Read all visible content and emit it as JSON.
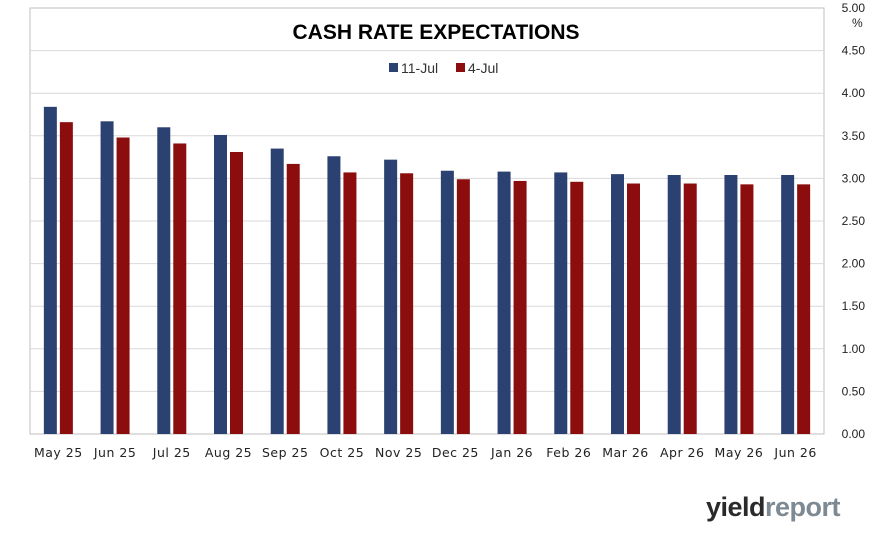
{
  "chart_data": {
    "type": "bar",
    "title": "CASH RATE EXPECTATIONS",
    "y_unit": "%",
    "ylim": [
      0,
      5
    ],
    "y_ticks": [
      "0.00",
      "0.50",
      "1.00",
      "1.50",
      "2.00",
      "2.50",
      "3.00",
      "3.50",
      "4.00",
      "4.50",
      "5.00"
    ],
    "categories": [
      "May 25",
      "Jun 25",
      "Jul 25",
      "Aug 25",
      "Sep 25",
      "Oct 25",
      "Nov 25",
      "Dec 25",
      "Jan 26",
      "Feb 26",
      "Mar 26",
      "Apr 26",
      "May 26",
      "Jun 26"
    ],
    "series": [
      {
        "name": "11-Jul",
        "color": "#2b4172",
        "values": [
          3.84,
          3.67,
          3.6,
          3.51,
          3.35,
          3.26,
          3.22,
          3.09,
          3.08,
          3.07,
          3.05,
          3.04,
          3.04,
          3.04
        ]
      },
      {
        "name": "4-Jul",
        "color": "#8b0d0d",
        "values": [
          3.66,
          3.48,
          3.41,
          3.31,
          3.17,
          3.07,
          3.06,
          2.99,
          2.97,
          2.96,
          2.94,
          2.94,
          2.93,
          2.93
        ]
      }
    ],
    "grid": true,
    "legend_position": "top-center"
  },
  "logo": {
    "part1": "yield",
    "part2": "report"
  },
  "colors": {
    "axis": "#bfbfbf",
    "grid": "#d9d9d9"
  }
}
